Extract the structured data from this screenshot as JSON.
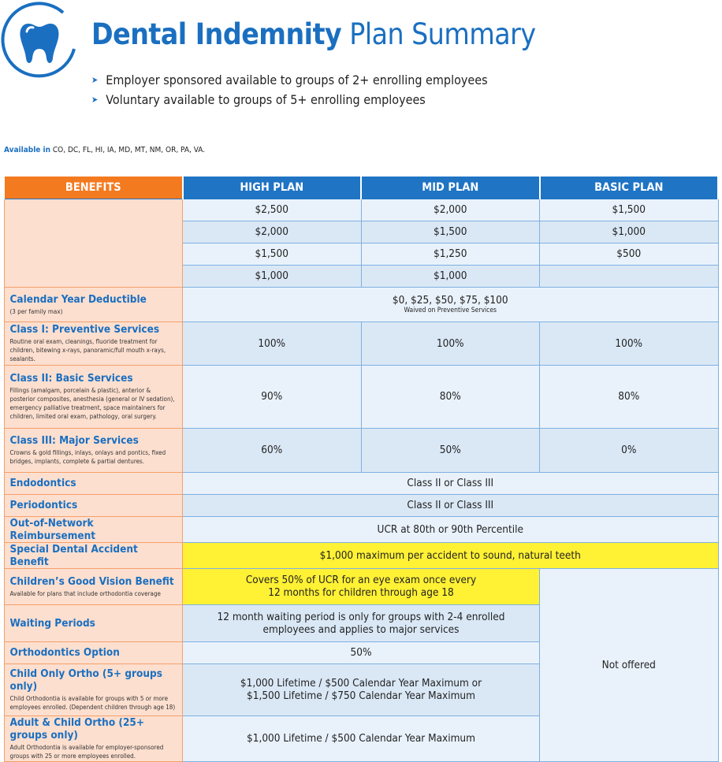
{
  "header": {
    "title_bold": "Dental Indemnity",
    "title_light": "Plan Summary",
    "bullets": [
      "Employer sponsored available to groups of 2+ enrolling employees",
      "Voluntary available to groups of 5+ enrolling employees"
    ]
  },
  "availability": {
    "label": "Available in",
    "states": "CO, DC, FL, HI, IA, MD, MT, NM, OR, PA, VA."
  },
  "table": {
    "columns": [
      "BENEFITS",
      "HIGH PLAN",
      "MID PLAN",
      "BASIC PLAN"
    ],
    "maximums": [
      [
        "$2,500",
        "$2,000",
        "$1,500"
      ],
      [
        "$2,000",
        "$1,500",
        "$1,000"
      ],
      [
        "$1,500",
        "$1,250",
        "$500"
      ],
      [
        "$1,000",
        "$1,000"
      ]
    ],
    "rows": [
      {
        "name": "Calendar Year Deductible",
        "note": "(3 per family max)",
        "cells": [
          "$0, $25, $50, $75,  $100"
        ],
        "cell_note": "Waived on Preventive Services"
      },
      {
        "name": "Class I: Preventive Services",
        "note": "Routine oral exam, cleanings, fluoride treatment for children, bitewing x-rays, panoramic/full mouth x-rays, sealants.",
        "cells": [
          "100%",
          "100%",
          "100%"
        ]
      },
      {
        "name": "Class II: Basic Services",
        "note": "Fillings (amalgam, porcelain & plastic), anterior & posterior composites, anesthesia (general or IV sedation), emergency palliative treatment, space maintainers for children, limited oral exam, pathology, oral surgery.",
        "cells": [
          "90%",
          "80%",
          "80%"
        ]
      },
      {
        "name": "Class III: Major Services",
        "note": "Crowns & gold fillings, inlays, onlays and pontics, fixed bridges, implants, complete & partial dentures.",
        "cells": [
          "60%",
          "50%",
          "0%"
        ]
      },
      {
        "name": "Endodontics",
        "cells": [
          "Class II or Class III"
        ]
      },
      {
        "name": "Periodontics",
        "cells": [
          "Class II or Class III"
        ]
      },
      {
        "name": "Out-of-Network Reimbursement",
        "cells": [
          "UCR at 80th or 90th Percentile"
        ]
      },
      {
        "name": "Special Dental Accident Benefit",
        "cells": [
          "$1,000 maximum per accident to sound, natural teeth"
        ]
      },
      {
        "name": "Children’s Good Vision Benefit",
        "note": "Available for plans that include orthodontia coverage",
        "cells": [
          "Covers 50% of UCR for an eye exam once every",
          "12 months for children through age 18"
        ]
      },
      {
        "name": "Waiting Periods",
        "cells": [
          "12 month waiting period is only for groups with 2-4 enrolled",
          "employees and applies to major services"
        ]
      },
      {
        "name": "Orthodontics Option",
        "cells": [
          "50%"
        ]
      },
      {
        "name": "Child Only Ortho (5+ groups only)",
        "note": "Child Orthodontia is available for groups with 5 or more employees enrolled. (Dependent children through age 18)",
        "cells": [
          "$1,000 Lifetime / $500 Calendar Year Maximum or",
          "$1,500 Lifetime / $750 Calendar Year Maximum"
        ]
      },
      {
        "name": "Adult & Child Ortho (25+ groups only)",
        "note": "Adult Orthodontia is available for employer-sponsored groups with 25 or more employees enrolled.",
        "cells": [
          "$1,000 Lifetime / $500 Calendar Year Maximum"
        ]
      }
    ],
    "not_offered": "Not offered"
  }
}
